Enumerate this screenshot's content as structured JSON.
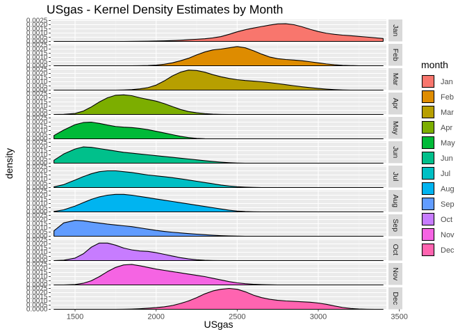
{
  "chart_data": {
    "type": "area",
    "title": "USgas - Kernel Density Estimates by Month",
    "xlabel": "USgas",
    "ylabel": "density",
    "xlim": [
      1350,
      3420
    ],
    "ylim": [
      0,
      0.0025
    ],
    "x_ticks": [
      1500,
      2000,
      2500,
      3000,
      3500
    ],
    "y_ticks": [
      "0.0000",
      "0.0005",
      "0.0010",
      "0.0015",
      "0.0020",
      "0.0025"
    ],
    "grid": true,
    "legend": {
      "title": "month",
      "placement": "right"
    },
    "x": [
      1370,
      1430,
      1500,
      1550,
      1600,
      1650,
      1700,
      1750,
      1800,
      1850,
      1900,
      1950,
      2000,
      2050,
      2100,
      2150,
      2200,
      2250,
      2300,
      2350,
      2400,
      2450,
      2500,
      2550,
      2600,
      2650,
      2700,
      2750,
      2800,
      2850,
      2900,
      2950,
      3000,
      3050,
      3100,
      3150,
      3200,
      3250,
      3300,
      3350,
      3400
    ],
    "series": [
      {
        "name": "Jan",
        "color": "#F8766D",
        "values": [
          0,
          0,
          0,
          0,
          0,
          0,
          0,
          0,
          0,
          1e-05,
          2e-05,
          3e-05,
          5e-05,
          7e-05,
          0.0001,
          0.00014,
          0.0002,
          0.00026,
          0.00032,
          0.00042,
          0.00058,
          0.00085,
          0.00115,
          0.0014,
          0.0016,
          0.00178,
          0.00195,
          0.0021,
          0.00212,
          0.002,
          0.00175,
          0.00145,
          0.00118,
          0.00098,
          0.00085,
          0.00075,
          0.00068,
          0.0006,
          0.00052,
          0.00043,
          0.00035
        ]
      },
      {
        "name": "Feb",
        "color": "#DE8C00",
        "values": [
          0,
          0,
          0,
          0,
          0,
          0,
          0,
          0,
          0,
          0,
          1e-05,
          3e-05,
          8e-05,
          0.00018,
          0.00035,
          0.0006,
          0.0009,
          0.0013,
          0.00165,
          0.0019,
          0.002,
          0.00215,
          0.0023,
          0.00215,
          0.0018,
          0.0014,
          0.00105,
          0.00085,
          0.00075,
          0.00068,
          0.0006,
          0.00048,
          0.00035,
          0.00022,
          0.00012,
          5e-05,
          2e-05,
          0,
          0,
          0,
          0
        ]
      },
      {
        "name": "Mar",
        "color": "#B79F00",
        "values": [
          0,
          0,
          0,
          0,
          0,
          0,
          0,
          0,
          2e-05,
          6e-05,
          0.00015,
          0.0003,
          0.0006,
          0.0011,
          0.0017,
          0.00215,
          0.0024,
          0.00235,
          0.00215,
          0.00185,
          0.0016,
          0.0014,
          0.00125,
          0.00115,
          0.00108,
          0.001,
          0.0009,
          0.00078,
          0.00065,
          0.00052,
          0.0004,
          0.0003,
          0.0002,
          0.00012,
          6e-05,
          2e-05,
          0,
          0,
          0,
          0,
          0
        ]
      },
      {
        "name": "Apr",
        "color": "#7CAE00",
        "values": [
          0,
          2e-05,
          0.00012,
          0.0004,
          0.0009,
          0.0015,
          0.002,
          0.0023,
          0.00235,
          0.00225,
          0.002,
          0.0018,
          0.0016,
          0.0013,
          0.00095,
          0.0006,
          0.00035,
          0.0002,
          0.0001,
          4e-05,
          1e-05,
          0,
          0,
          0,
          0,
          0,
          0,
          0,
          0,
          0,
          0,
          0,
          0,
          0,
          0,
          0,
          0,
          0,
          0,
          0,
          0
        ]
      },
      {
        "name": "May",
        "color": "#00BA38",
        "values": [
          0.0004,
          0.00105,
          0.0017,
          0.00195,
          0.002,
          0.00185,
          0.00165,
          0.00148,
          0.0014,
          0.00135,
          0.00125,
          0.0011,
          0.0009,
          0.0007,
          0.0005,
          0.0003,
          0.00015,
          5e-05,
          1e-05,
          0,
          0,
          0,
          0,
          0,
          0,
          0,
          0,
          0,
          0,
          0,
          0,
          0,
          0,
          0,
          0,
          0,
          0,
          0,
          0,
          0,
          0
        ]
      },
      {
        "name": "Jun",
        "color": "#00C08B",
        "values": [
          0.00035,
          0.0011,
          0.0017,
          0.00195,
          0.0019,
          0.00175,
          0.0016,
          0.00145,
          0.0013,
          0.0012,
          0.0011,
          0.001,
          0.0009,
          0.0008,
          0.0007,
          0.0006,
          0.0005,
          0.0004,
          0.0003,
          0.0002,
          0.00012,
          6e-05,
          2e-05,
          0,
          0,
          0,
          0,
          0,
          0,
          0,
          0,
          0,
          0,
          0,
          0,
          0,
          0,
          0,
          0,
          0,
          0
        ]
      },
      {
        "name": "Jul",
        "color": "#00BFC4",
        "values": [
          8e-05,
          0.00035,
          0.0009,
          0.0013,
          0.00165,
          0.0019,
          0.002,
          0.002,
          0.0019,
          0.0018,
          0.00165,
          0.0015,
          0.0014,
          0.0013,
          0.00118,
          0.00105,
          0.0009,
          0.00075,
          0.0006,
          0.00045,
          0.0003,
          0.00018,
          0.0001,
          5e-05,
          2e-05,
          0,
          0,
          0,
          0,
          0,
          0,
          0,
          0,
          0,
          0,
          0,
          0,
          0,
          0,
          0,
          0
        ]
      },
      {
        "name": "Aug",
        "color": "#00B4F0",
        "values": [
          5e-05,
          0.00025,
          0.0007,
          0.0011,
          0.0015,
          0.0018,
          0.002,
          0.0021,
          0.0021,
          0.002,
          0.00185,
          0.0017,
          0.00155,
          0.0014,
          0.00125,
          0.0011,
          0.00095,
          0.0008,
          0.00065,
          0.0005,
          0.00035,
          0.0002,
          0.0001,
          4e-05,
          1e-05,
          0,
          0,
          0,
          0,
          0,
          0,
          0,
          0,
          0,
          0,
          0,
          0,
          0,
          0,
          0,
          0
        ]
      },
      {
        "name": "Sep",
        "color": "#619CFF",
        "values": [
          0.00065,
          0.0016,
          0.0019,
          0.00185,
          0.0017,
          0.00158,
          0.00145,
          0.00135,
          0.00125,
          0.00115,
          0.001,
          0.00085,
          0.0007,
          0.00058,
          0.00048,
          0.0004,
          0.00032,
          0.00025,
          0.00018,
          0.00012,
          7e-05,
          4e-05,
          2e-05,
          0,
          0,
          0,
          0,
          0,
          0,
          0,
          0,
          0,
          0,
          0,
          0,
          0,
          0,
          0,
          0,
          0,
          0
        ]
      },
      {
        "name": "Oct",
        "color": "#C77CFF",
        "values": [
          0,
          5e-05,
          0.0003,
          0.0008,
          0.0016,
          0.0021,
          0.0021,
          0.00185,
          0.0015,
          0.00128,
          0.00115,
          0.0011,
          0.00095,
          0.00075,
          0.00055,
          0.00035,
          0.0002,
          0.0001,
          4e-05,
          1e-05,
          0,
          0,
          0,
          0,
          0,
          0,
          0,
          0,
          0,
          0,
          0,
          0,
          0,
          0,
          0,
          0,
          0,
          0,
          0,
          0,
          0
        ]
      },
      {
        "name": "Nov",
        "color": "#F564E3",
        "values": [
          0,
          0,
          5e-05,
          0.0002,
          0.0005,
          0.001,
          0.0016,
          0.0021,
          0.0024,
          0.00245,
          0.0023,
          0.0021,
          0.0019,
          0.00175,
          0.0016,
          0.00145,
          0.0013,
          0.00115,
          0.001,
          0.0008,
          0.0006,
          0.0004,
          0.00025,
          0.00015,
          8e-05,
          4e-05,
          2e-05,
          0,
          0,
          0,
          0,
          0,
          0,
          0,
          0,
          0,
          0,
          0,
          0,
          0,
          0
        ]
      },
      {
        "name": "Dec",
        "color": "#FF64B0",
        "values": [
          0,
          0,
          0,
          0,
          0,
          0,
          0,
          0,
          1e-05,
          3e-05,
          7e-05,
          0.00013,
          0.0002,
          0.0003,
          0.00045,
          0.0007,
          0.001,
          0.0014,
          0.00185,
          0.0022,
          0.0024,
          0.0025,
          0.0024,
          0.0021,
          0.0017,
          0.0014,
          0.0012,
          0.00108,
          0.001,
          0.00095,
          0.0009,
          0.00085,
          0.00075,
          0.0006,
          0.0004,
          0.00022,
          0.0001,
          4e-05,
          1e-05,
          0,
          0
        ]
      }
    ]
  }
}
